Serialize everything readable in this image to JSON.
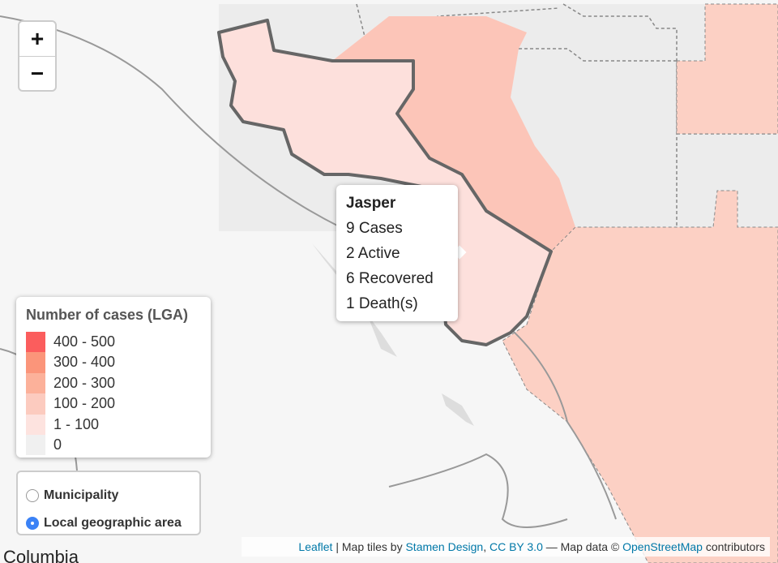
{
  "zoom_control": {
    "zoom_in": "+",
    "zoom_out": "−"
  },
  "popup": {
    "title": "Jasper",
    "lines": [
      "9 Cases",
      "2 Active",
      "6 Recovered",
      "1 Death(s)"
    ]
  },
  "legend": {
    "title": "Number of cases (LGA)",
    "items": [
      {
        "label": "400 - 500",
        "color": "#fb4b4b"
      },
      {
        "label": "300 - 400",
        "color": "#fb8a6b"
      },
      {
        "label": "200 - 300",
        "color": "#fca88f"
      },
      {
        "label": "100 - 200",
        "color": "#fcc5b8"
      },
      {
        "label": "1 - 100",
        "color": "#fde0dc"
      },
      {
        "label": "0",
        "color": "#eeeeee"
      }
    ]
  },
  "layer_control": {
    "options": [
      {
        "label": "Municipality",
        "selected": false
      },
      {
        "label": "Local geographic area",
        "selected": true
      }
    ]
  },
  "attribution": {
    "parts": [
      {
        "text": "Leaflet",
        "link": true
      },
      {
        "text": " | Map tiles by ",
        "link": false
      },
      {
        "text": "Stamen Design",
        "link": true
      },
      {
        "text": ", ",
        "link": false
      },
      {
        "text": "CC BY 3.0",
        "link": true
      },
      {
        "text": " — Map data © ",
        "link": false
      },
      {
        "text": "OpenStreetMap",
        "link": true
      },
      {
        "text": " contributors",
        "link": false
      }
    ]
  },
  "place_label": "Columbia"
}
